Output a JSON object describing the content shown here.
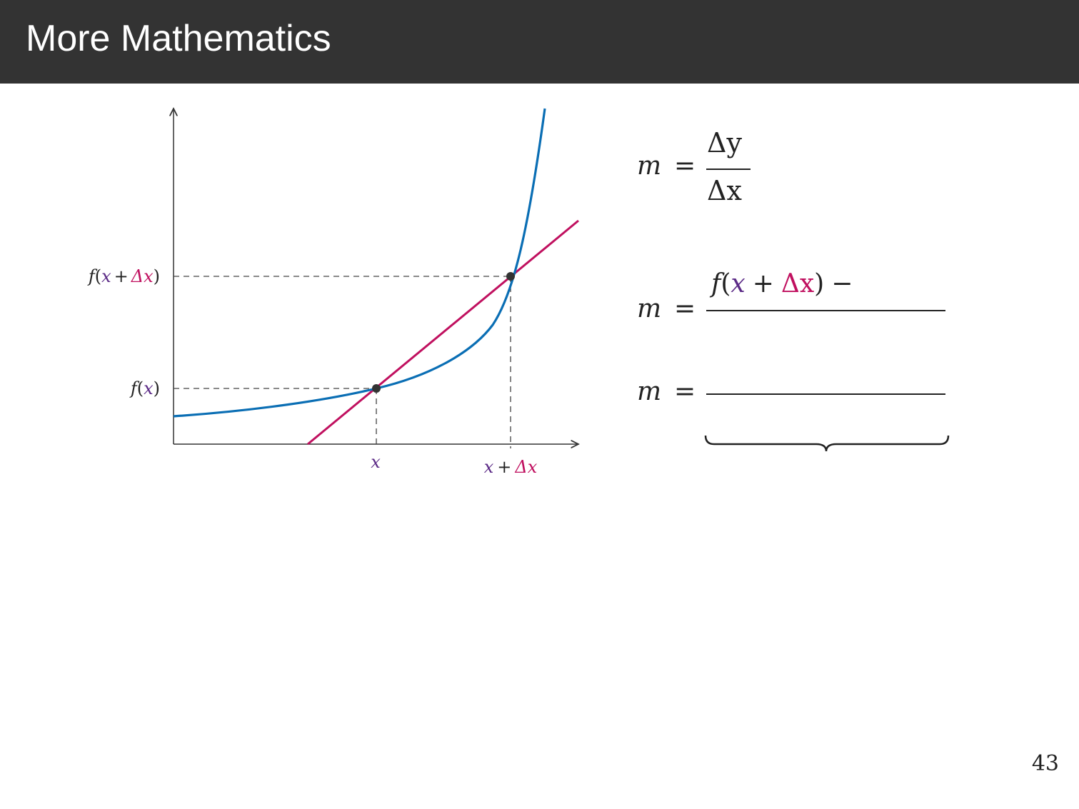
{
  "header": {
    "title": "More Mathematics"
  },
  "colors": {
    "header_bg": "#333333",
    "curve": "#0a6eb4",
    "secant": "#c0105f",
    "x_var": "#5b2a86",
    "delta": "#c0105f",
    "point": "#333333"
  },
  "diagram": {
    "y_tick_upper": {
      "f": "f",
      "open": "(",
      "x": "x",
      "plus": "+",
      "delta": "Δx",
      "close": ")"
    },
    "y_tick_lower": {
      "f": "f",
      "open": "(",
      "x": "x",
      "close": ")"
    },
    "x_tick_left": {
      "x": "x"
    },
    "x_tick_right": {
      "x": "x",
      "plus": "+",
      "delta": "Δx"
    }
  },
  "equations": {
    "eq1": {
      "lhs": "m",
      "equals": "=",
      "numerator": "Δy",
      "denominator": "Δx"
    },
    "eq2": {
      "lhs": "m",
      "equals": "=",
      "num_f": "f",
      "num_open": "(",
      "num_x": "x",
      "num_plus": "+",
      "num_delta": "Δx",
      "num_close": ")",
      "num_minus": "−"
    },
    "eq3": {
      "lhs": "m",
      "equals": "="
    }
  },
  "page_number": "43"
}
